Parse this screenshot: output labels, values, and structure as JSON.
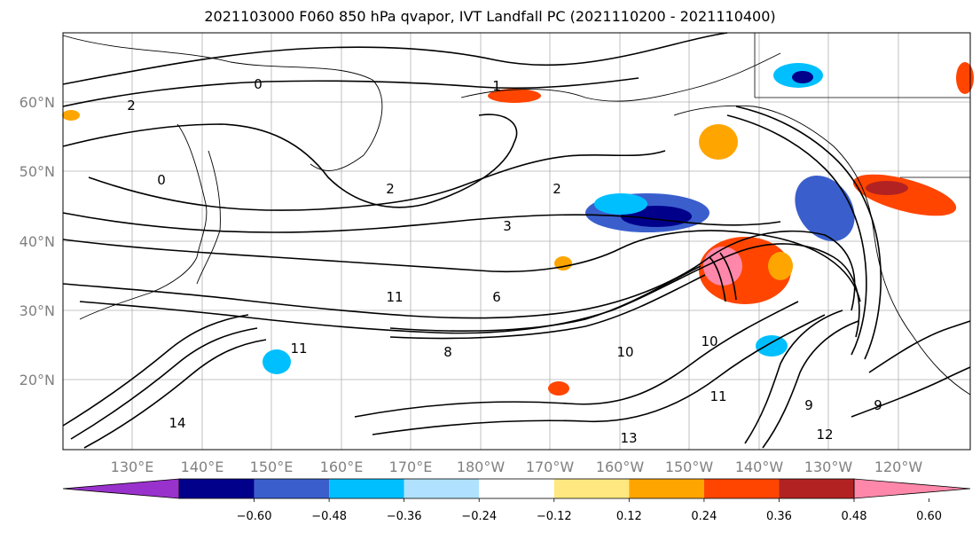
{
  "title": "2021103000 F060 850 hPa qvapor, IVT Landfall PC (2021110200 - 2021110400)",
  "map": {
    "lat_labels": [
      "60°N",
      "50°N",
      "40°N",
      "30°N",
      "20°N"
    ],
    "lon_labels": [
      "130°E",
      "140°E",
      "150°E",
      "160°E",
      "170°E",
      "180°W",
      "170°W",
      "160°W",
      "150°W",
      "140°W",
      "130°W",
      "120°W"
    ],
    "contour_labels": [
      "0",
      "1",
      "2",
      "2",
      "3",
      "2",
      "0",
      "6",
      "11",
      "10",
      "11",
      "8",
      "10",
      "13",
      "11",
      "9",
      "14",
      "12",
      "9"
    ]
  },
  "colorbar": {
    "ticks": [
      "−0.60",
      "−0.48",
      "−0.36",
      "−0.24",
      "−0.12",
      "0.12",
      "0.24",
      "0.36",
      "0.48",
      "0.60"
    ],
    "colors": [
      "#9932cc",
      "#00008b",
      "#3a5fcd",
      "#00bfff",
      "#b0e2ff",
      "#ffffff",
      "#ffe880",
      "#ffa500",
      "#ff4500",
      "#b22222",
      "#ff88aa"
    ]
  }
}
